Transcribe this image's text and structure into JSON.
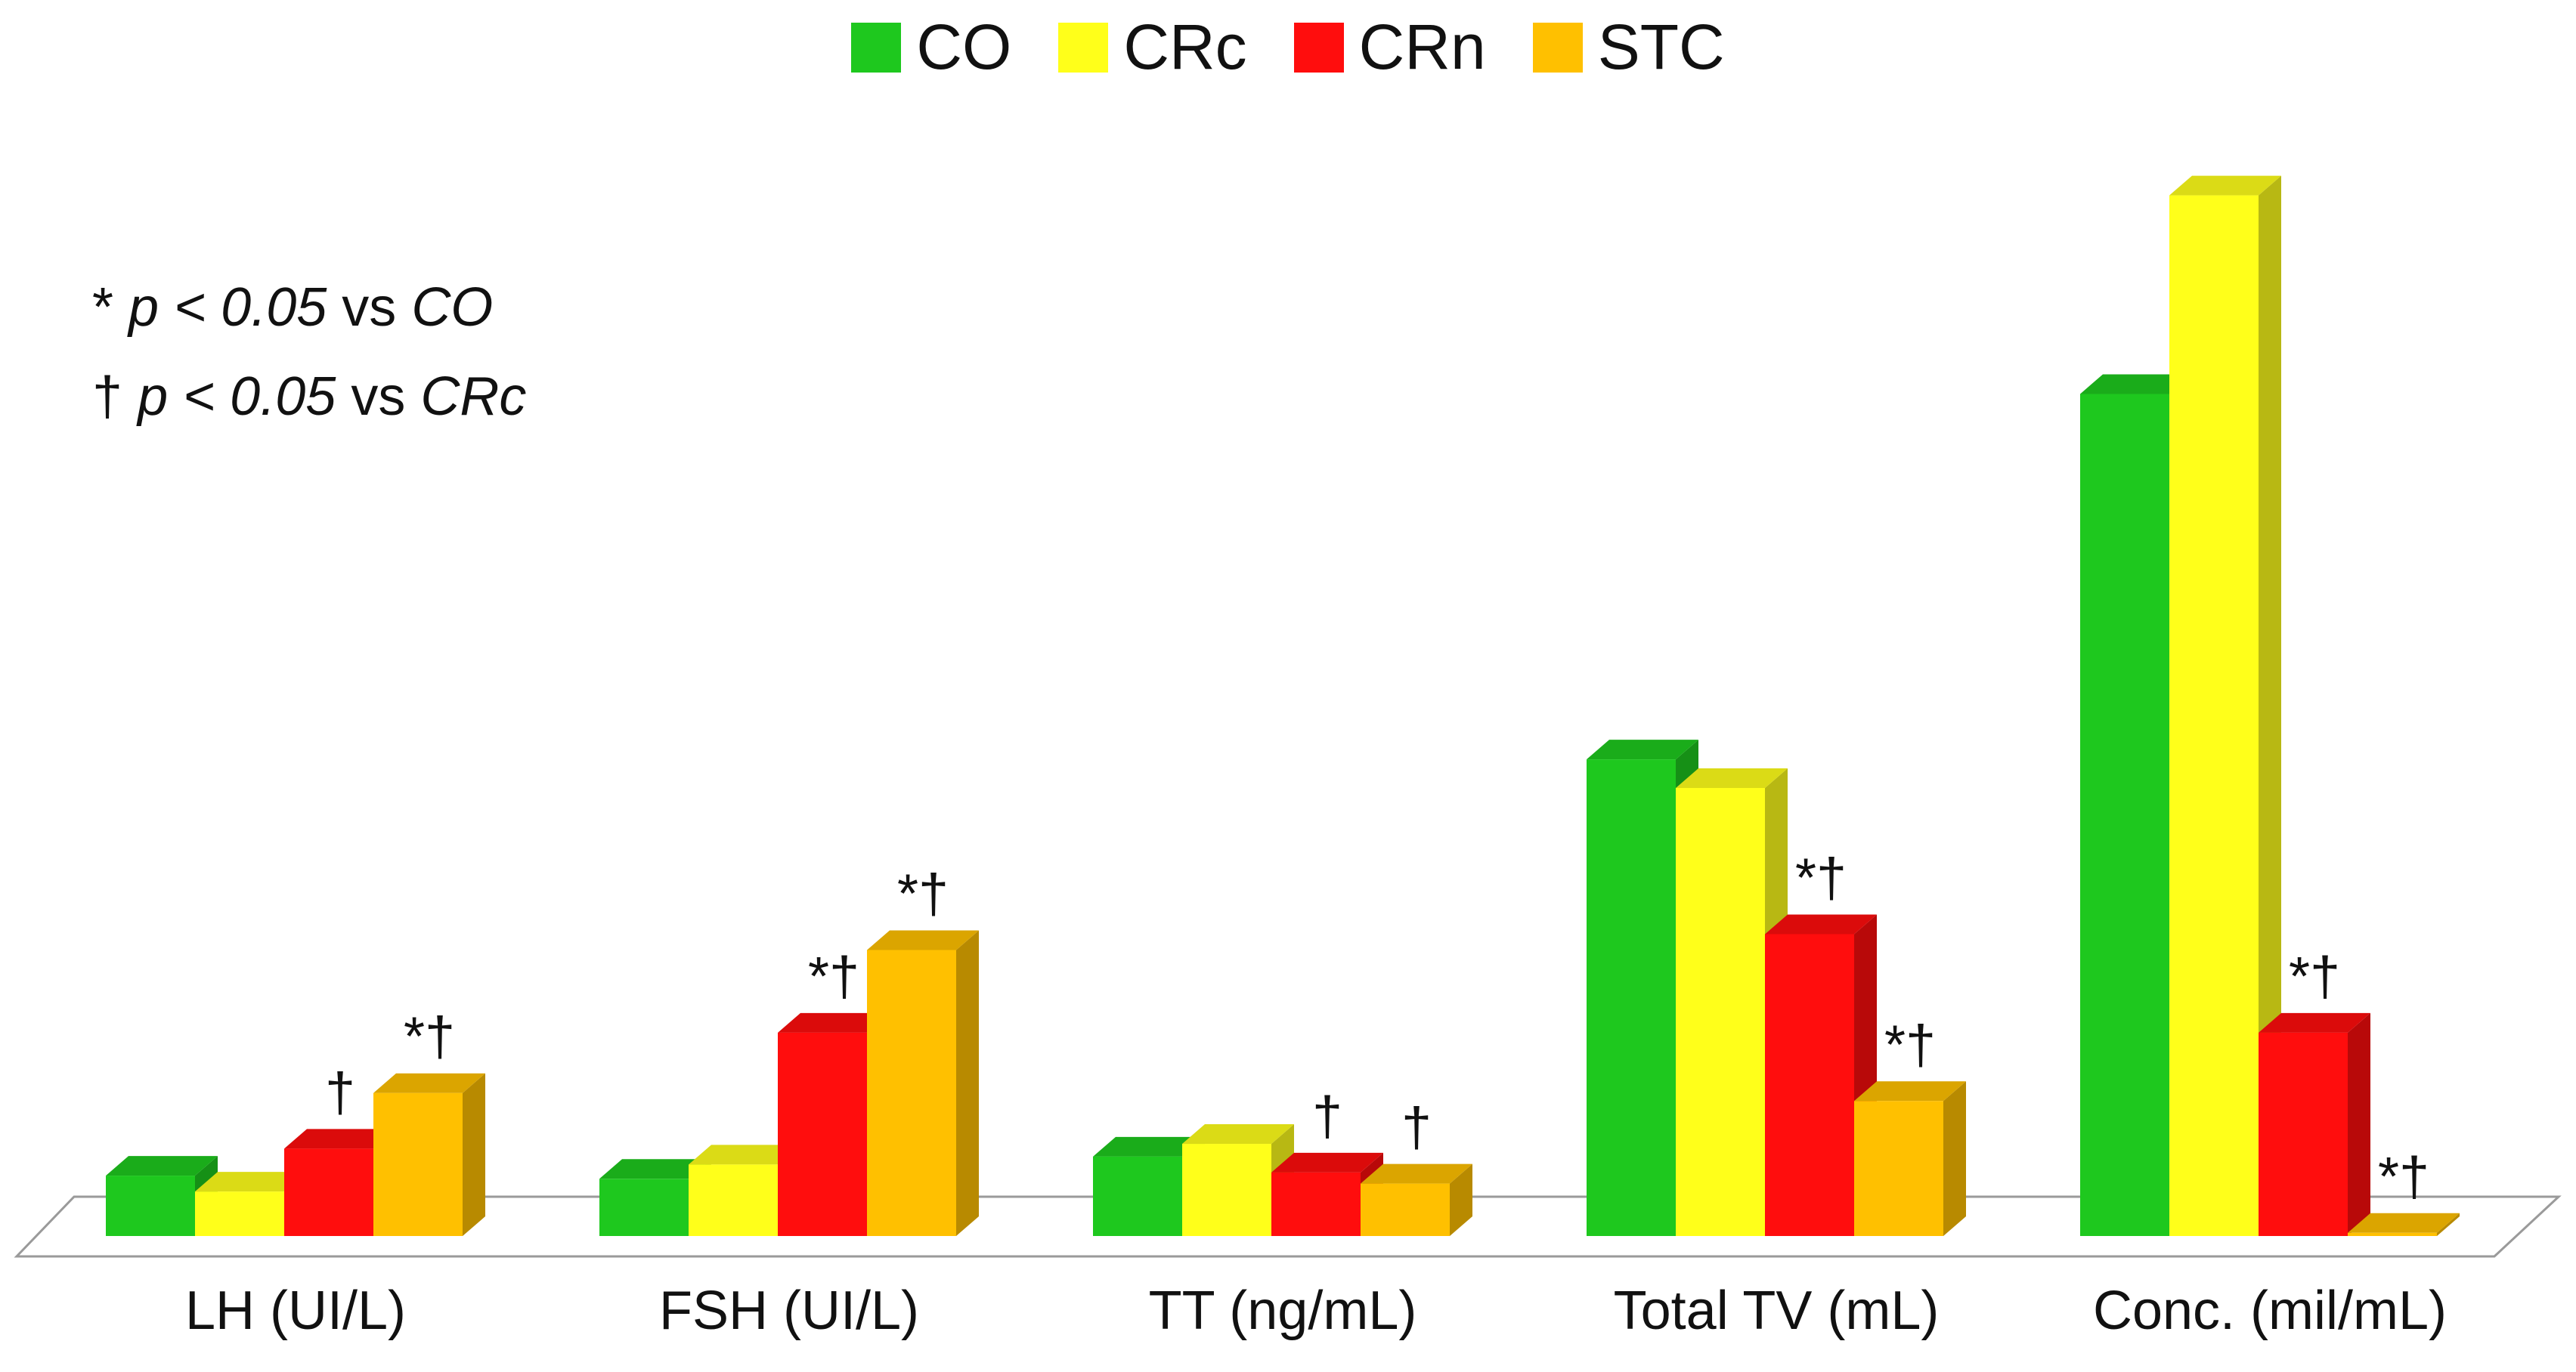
{
  "chart_data": {
    "type": "bar",
    "style": "3d-clustered",
    "categories": [
      "LH (UI/L)",
      "FSH (UI/L)",
      "TT (ng/mL)",
      "Total TV (mL)",
      "Conc. (mil/mL)"
    ],
    "series": [
      {
        "name": "CO",
        "color": "#1ec81e",
        "values": [
          38,
          36,
          50,
          300,
          530
        ]
      },
      {
        "name": "CRc",
        "color": "#ffff1a",
        "values": [
          28,
          45,
          58,
          282,
          655
        ]
      },
      {
        "name": "CRn",
        "color": "#ff0d0d",
        "values": [
          55,
          128,
          40,
          190,
          128
        ]
      },
      {
        "name": "STC",
        "color": "#ffc000",
        "values": [
          90,
          180,
          33,
          85,
          2
        ]
      }
    ],
    "annotations": [
      [
        "",
        "",
        "†",
        "*†"
      ],
      [
        "",
        "",
        "*†",
        "*†"
      ],
      [
        "",
        "",
        "†",
        "†"
      ],
      [
        "",
        "",
        "*†",
        "*†"
      ],
      [
        "",
        "",
        "*†",
        "*†"
      ]
    ],
    "ylim": [
      0,
      680
    ],
    "grid": false,
    "legend": "top-center"
  },
  "legend": {
    "items": [
      {
        "label": "CO"
      },
      {
        "label": "CRc"
      },
      {
        "label": "CRn"
      },
      {
        "label": "STC"
      }
    ]
  },
  "notes": {
    "line1": {
      "sym": "*",
      "p": "p < 0.05",
      "vs": "vs",
      "group": "CO"
    },
    "line2": {
      "sym": "†",
      "p": "p < 0.05",
      "vs": "vs",
      "group": "CRc"
    }
  }
}
